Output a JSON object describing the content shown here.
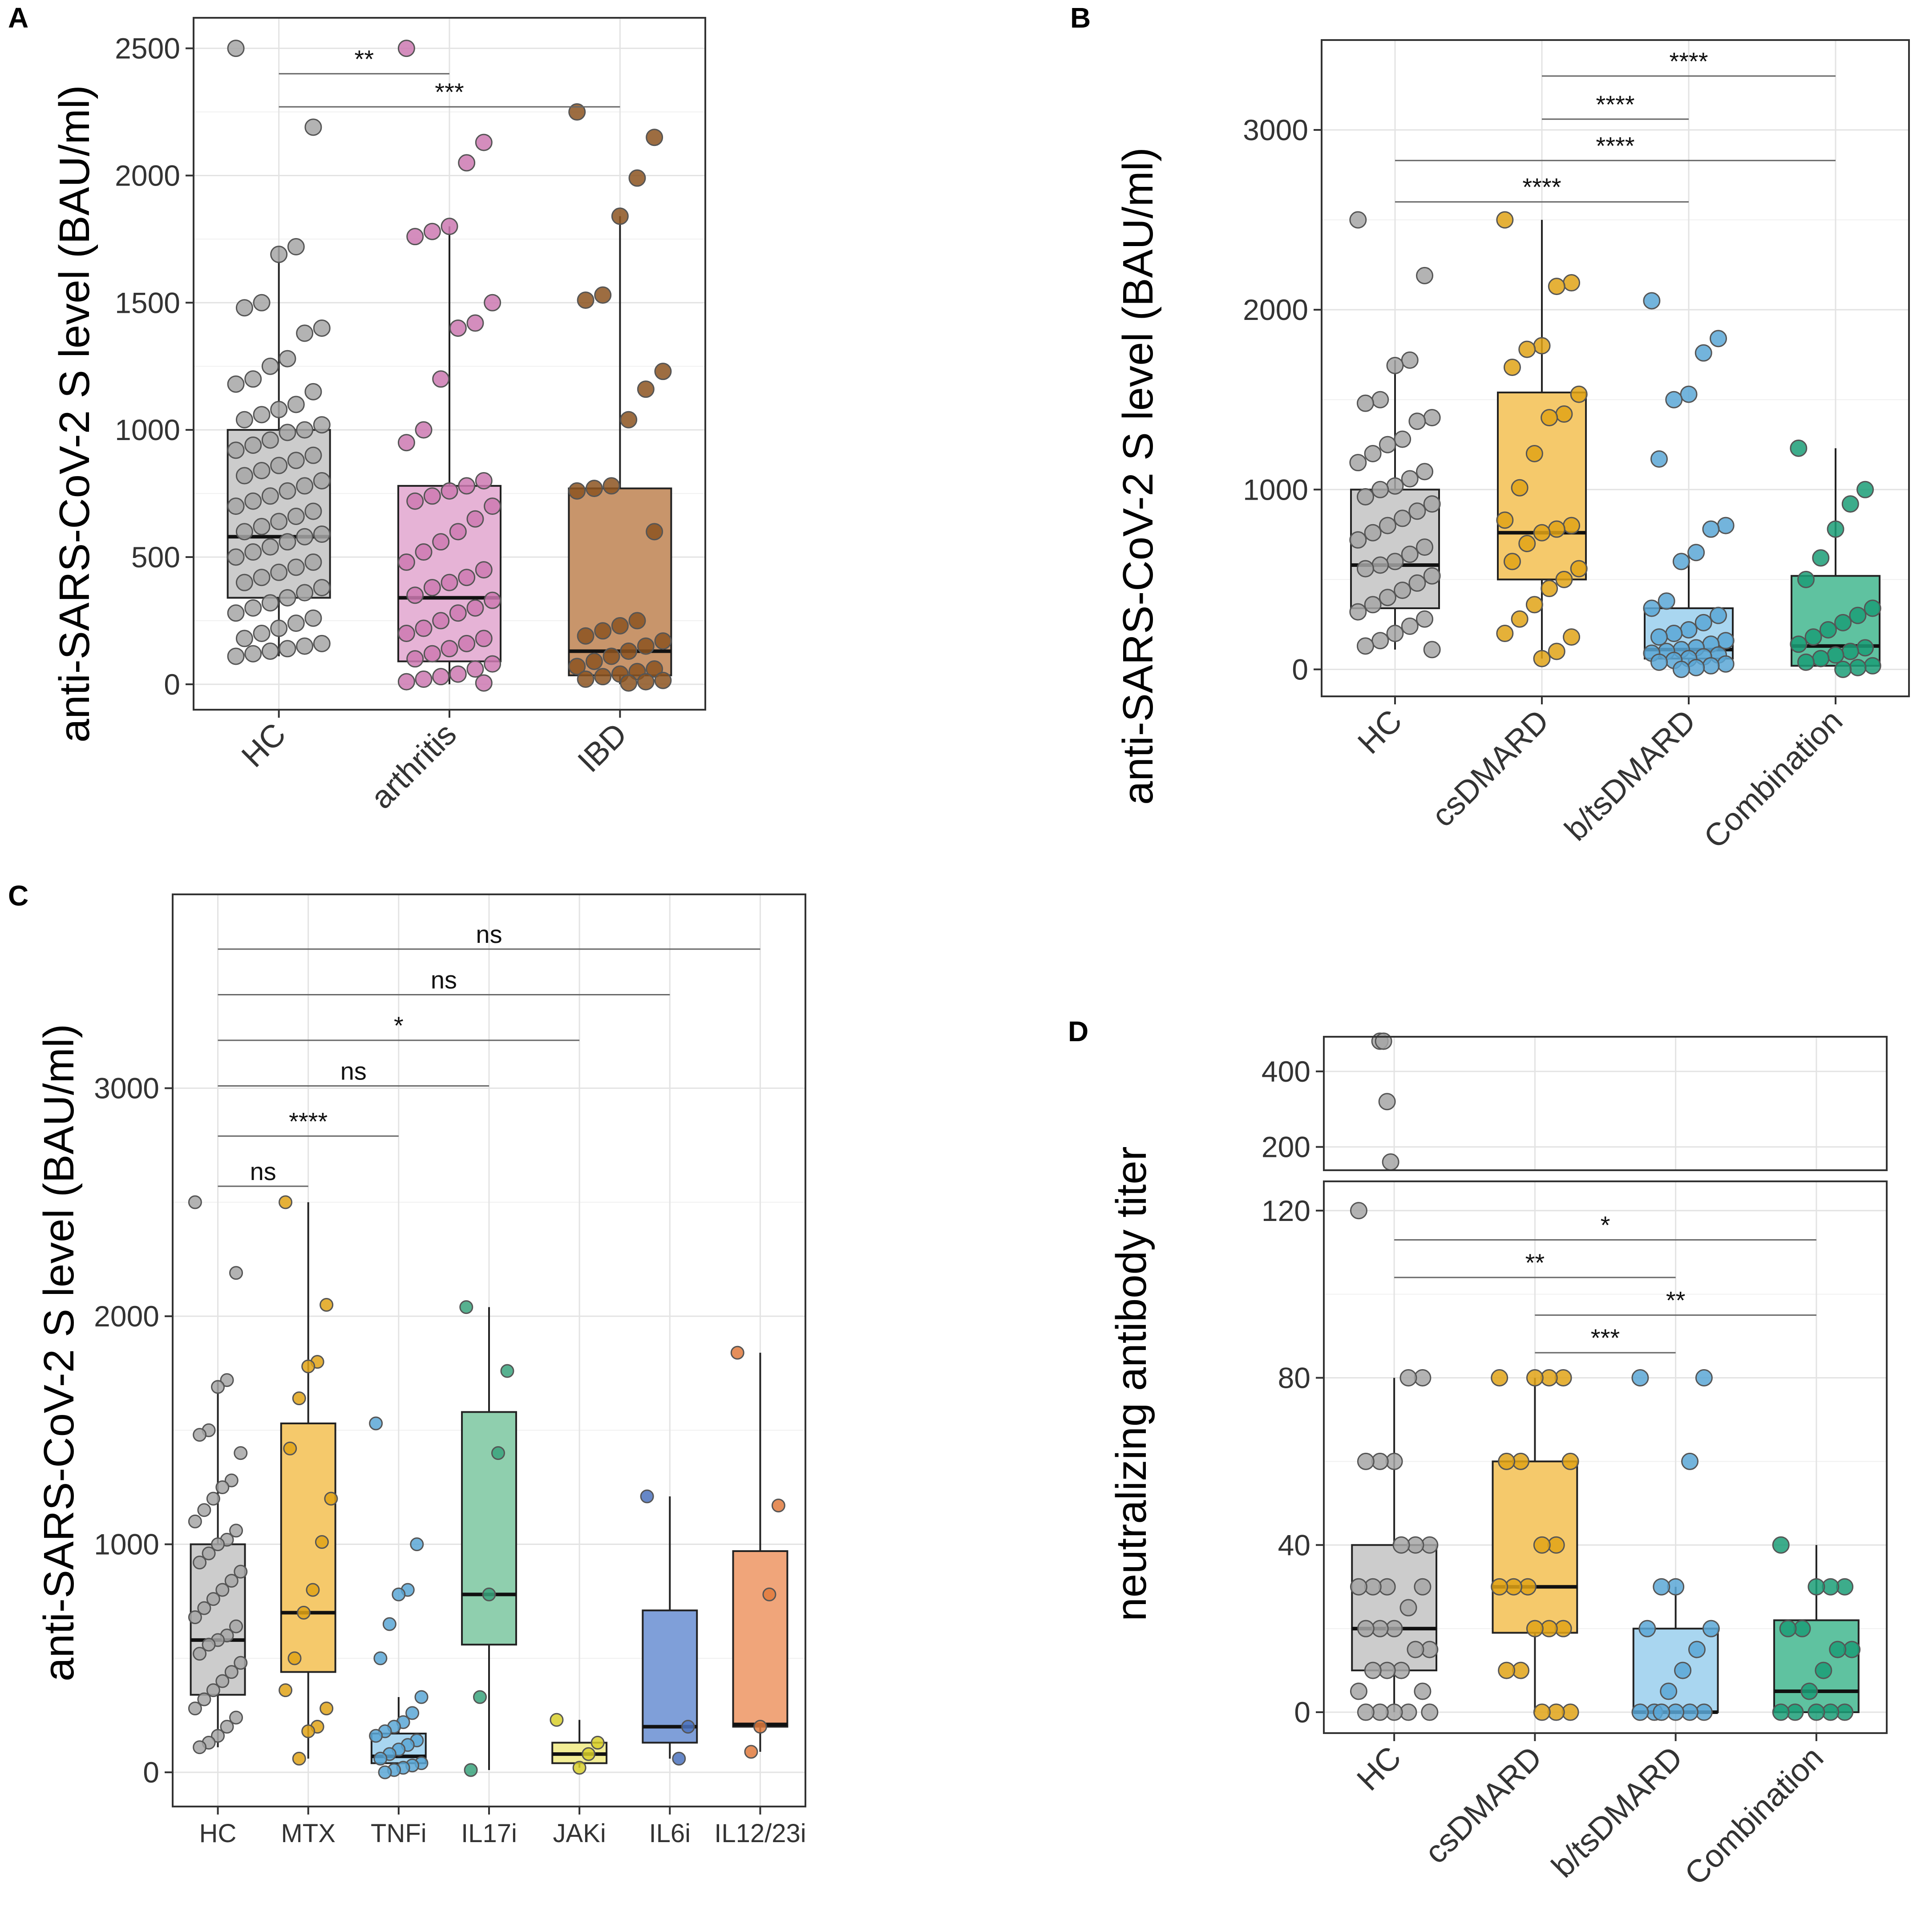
{
  "figure": {
    "panels": [
      "A",
      "B",
      "C",
      "D"
    ]
  },
  "chart_data": [
    {
      "id": "A",
      "panel_label": "A",
      "type": "box",
      "ylabel": "anti-SARS-CoV-2 S level (BAU/ml)",
      "ylim": [
        -100,
        2620
      ],
      "yticks": [
        0,
        500,
        1000,
        1500,
        2000,
        2500
      ],
      "categories": [
        "HC",
        "arthritis",
        "IBD"
      ],
      "colors": [
        "#cccccc",
        "#e6b3d6",
        "#c8956b"
      ],
      "point_colors": [
        "#a6a6a6",
        "#cc79b1",
        "#8c5420"
      ],
      "boxes": [
        {
          "q1": 340,
          "median": 580,
          "q3": 1000,
          "wlo": 110,
          "whi": 1720
        },
        {
          "q1": 90,
          "median": 340,
          "q3": 780,
          "wlo": 0,
          "whi": 1800
        },
        {
          "q1": 35,
          "median": 130,
          "q3": 770,
          "wlo": 0,
          "whi": 1840
        }
      ],
      "points": [
        [
          2500,
          2190,
          1720,
          1690,
          1500,
          1480,
          1400,
          1380,
          1280,
          1250,
          1200,
          1180,
          1150,
          1100,
          1080,
          1060,
          1040,
          1020,
          1000,
          990,
          960,
          940,
          920,
          900,
          880,
          860,
          840,
          820,
          800,
          780,
          760,
          740,
          720,
          700,
          680,
          660,
          640,
          620,
          600,
          590,
          580,
          560,
          540,
          520,
          500,
          480,
          460,
          440,
          420,
          400,
          380,
          360,
          340,
          320,
          300,
          280,
          260,
          240,
          220,
          200,
          180,
          160,
          150,
          140,
          130,
          120,
          110
        ],
        [
          2500,
          2130,
          2050,
          1800,
          1780,
          1760,
          1500,
          1420,
          1400,
          1200,
          1000,
          950,
          800,
          780,
          760,
          740,
          720,
          700,
          650,
          600,
          560,
          520,
          480,
          450,
          420,
          400,
          380,
          350,
          330,
          300,
          280,
          250,
          220,
          200,
          180,
          160,
          140,
          120,
          100,
          80,
          60,
          40,
          30,
          20,
          10,
          5
        ],
        [
          2250,
          2150,
          1990,
          1840,
          1530,
          1510,
          1230,
          1160,
          1040,
          780,
          770,
          760,
          600,
          250,
          230,
          210,
          190,
          170,
          150,
          130,
          110,
          90,
          70,
          60,
          50,
          40,
          30,
          20,
          15,
          10,
          5
        ]
      ],
      "comparisons": [
        {
          "from": 0,
          "to": 1,
          "y": 2400,
          "label": "**"
        },
        {
          "from": 0,
          "to": 2,
          "y": 2270,
          "label": "***"
        }
      ]
    },
    {
      "id": "B",
      "panel_label": "B",
      "type": "box",
      "ylabel": "anti-SARS-CoV-2 S level (BAU/ml)",
      "ylim": [
        -150,
        3500
      ],
      "yticks": [
        0,
        1000,
        2000,
        3000
      ],
      "categories": [
        "HC",
        "csDMARD",
        "b/tsDMARD",
        "Combination"
      ],
      "colors": [
        "#cccccc",
        "#f5c96b",
        "#a9d6f0",
        "#5fc2a0"
      ],
      "point_colors": [
        "#a6a6a6",
        "#e0a316",
        "#5aa7d6",
        "#1b9e77"
      ],
      "boxes": [
        {
          "q1": 340,
          "median": 580,
          "q3": 1000,
          "wlo": 110,
          "whi": 1720
        },
        {
          "q1": 500,
          "median": 760,
          "q3": 1540,
          "wlo": 60,
          "whi": 2500
        },
        {
          "q1": 60,
          "median": 110,
          "q3": 340,
          "wlo": 0,
          "whi": 640
        },
        {
          "q1": 20,
          "median": 130,
          "q3": 520,
          "wlo": 0,
          "whi": 1230
        }
      ],
      "points": [
        [
          2500,
          2190,
          1720,
          1690,
          1500,
          1480,
          1400,
          1380,
          1280,
          1250,
          1200,
          1150,
          1100,
          1060,
          1020,
          1000,
          960,
          920,
          880,
          840,
          800,
          760,
          720,
          680,
          640,
          600,
          580,
          560,
          520,
          480,
          440,
          400,
          360,
          320,
          280,
          240,
          200,
          160,
          130,
          110
        ],
        [
          2500,
          2150,
          2130,
          1800,
          1780,
          1680,
          1530,
          1420,
          1400,
          1200,
          1010,
          830,
          800,
          780,
          760,
          700,
          600,
          560,
          500,
          450,
          360,
          280,
          200,
          180,
          100,
          60
        ],
        [
          2050,
          1840,
          1760,
          1530,
          1500,
          1170,
          800,
          780,
          650,
          600,
          380,
          340,
          300,
          260,
          220,
          200,
          180,
          160,
          140,
          120,
          110,
          100,
          90,
          80,
          70,
          60,
          50,
          40,
          30,
          20,
          10,
          0
        ],
        [
          1230,
          1000,
          920,
          780,
          620,
          500,
          340,
          300,
          260,
          220,
          180,
          140,
          120,
          100,
          80,
          60,
          40,
          20,
          10,
          0
        ]
      ],
      "comparisons": [
        {
          "from": 1,
          "to": 3,
          "y": 3300,
          "label": "****"
        },
        {
          "from": 1,
          "to": 2,
          "y": 3060,
          "label": "****"
        },
        {
          "from": 0,
          "to": 3,
          "y": 2830,
          "label": "****"
        },
        {
          "from": 0,
          "to": 2,
          "y": 2600,
          "label": "****"
        }
      ]
    },
    {
      "id": "C",
      "panel_label": "C",
      "type": "box",
      "ylabel": "anti-SARS-CoV-2 S level (BAU/ml)",
      "ylim": [
        -150,
        3850
      ],
      "yticks": [
        0,
        1000,
        2000,
        3000
      ],
      "categories": [
        "HC",
        "MTX",
        "TNFi",
        "IL17i",
        "JAKi",
        "IL6i",
        "IL12/23i"
      ],
      "colors": [
        "#cccccc",
        "#f5c96b",
        "#a9d6f0",
        "#8fcfae",
        "#f3ee96",
        "#7f9fd9",
        "#f0a57a"
      ],
      "point_colors": [
        "#a6a6a6",
        "#e0a316",
        "#5aa7d6",
        "#3aa37c",
        "#d8cf2a",
        "#4b72bd",
        "#e07a3d"
      ],
      "boxes": [
        {
          "q1": 340,
          "median": 580,
          "q3": 1000,
          "wlo": 110,
          "whi": 1720
        },
        {
          "q1": 440,
          "median": 700,
          "q3": 1530,
          "wlo": 60,
          "whi": 2500
        },
        {
          "q1": 40,
          "median": 70,
          "q3": 170,
          "wlo": 0,
          "whi": 330
        },
        {
          "q1": 560,
          "median": 780,
          "q3": 1580,
          "wlo": 10,
          "whi": 2040
        },
        {
          "q1": 40,
          "median": 80,
          "q3": 130,
          "wlo": 20,
          "whi": 230
        },
        {
          "q1": 130,
          "median": 200,
          "q3": 710,
          "wlo": 60,
          "whi": 1210
        },
        {
          "q1": 200,
          "median": 210,
          "q3": 970,
          "wlo": 90,
          "whi": 1840
        }
      ],
      "points": [
        [
          2500,
          2190,
          1720,
          1690,
          1500,
          1480,
          1400,
          1280,
          1250,
          1200,
          1150,
          1100,
          1060,
          1020,
          1000,
          960,
          920,
          880,
          840,
          800,
          760,
          720,
          680,
          640,
          600,
          580,
          560,
          520,
          480,
          440,
          400,
          360,
          320,
          280,
          240,
          200,
          160,
          130,
          110
        ],
        [
          2500,
          2050,
          1800,
          1780,
          1640,
          1420,
          1200,
          1010,
          800,
          700,
          500,
          360,
          280,
          200,
          180,
          60
        ],
        [
          1530,
          1000,
          800,
          780,
          650,
          500,
          330,
          260,
          220,
          200,
          180,
          160,
          140,
          120,
          100,
          80,
          60,
          40,
          30,
          20,
          10,
          0
        ],
        [
          2040,
          1760,
          1400,
          780,
          330,
          10
        ],
        [
          230,
          130,
          80,
          20
        ],
        [
          1210,
          200,
          60
        ],
        [
          1840,
          1170,
          780,
          200,
          90
        ]
      ],
      "comparisons": [
        {
          "from": 0,
          "to": 6,
          "y": 3610,
          "label": "ns"
        },
        {
          "from": 0,
          "to": 5,
          "y": 3410,
          "label": "ns"
        },
        {
          "from": 0,
          "to": 4,
          "y": 3210,
          "label": "*"
        },
        {
          "from": 0,
          "to": 3,
          "y": 3010,
          "label": "ns"
        },
        {
          "from": 0,
          "to": 2,
          "y": 2790,
          "label": "****"
        },
        {
          "from": 0,
          "to": 1,
          "y": 2570,
          "label": "ns"
        }
      ]
    },
    {
      "id": "D",
      "panel_label": "D",
      "type": "box",
      "ylabel": "neutralizing antibody titer",
      "ylim": [
        -5,
        127
      ],
      "yticks": [
        0,
        40,
        80,
        120
      ],
      "top_ylim": [
        150,
        480
      ],
      "top_yticks": [
        200,
        400
      ],
      "categories": [
        "HC",
        "csDMARD",
        "b/tsDMARD",
        "Combination"
      ],
      "colors": [
        "#cccccc",
        "#f5c96b",
        "#a9d6f0",
        "#5fc2a0"
      ],
      "point_colors": [
        "#a6a6a6",
        "#e0a316",
        "#5aa7d6",
        "#1b9e77"
      ],
      "boxes": [
        {
          "q1": 10,
          "median": 20,
          "q3": 40,
          "wlo": 0,
          "whi": 80
        },
        {
          "q1": 19,
          "median": 30,
          "q3": 60,
          "wlo": 0,
          "whi": 80
        },
        {
          "q1": 0,
          "median": 0,
          "q3": 20,
          "wlo": 0,
          "whi": 30
        },
        {
          "q1": 0,
          "median": 5,
          "q3": 22,
          "wlo": 0,
          "whi": 40
        }
      ],
      "points": [
        [
          120,
          80,
          80,
          60,
          60,
          60,
          40,
          40,
          40,
          30,
          30,
          30,
          30,
          25,
          20,
          20,
          20,
          15,
          15,
          10,
          10,
          10,
          5,
          5,
          0,
          0,
          0,
          0,
          0
        ],
        [
          80,
          80,
          80,
          80,
          60,
          60,
          60,
          40,
          40,
          30,
          30,
          30,
          20,
          20,
          20,
          10,
          10,
          0,
          0,
          0
        ],
        [
          80,
          80,
          60,
          30,
          30,
          20,
          20,
          15,
          10,
          5,
          0,
          0,
          0,
          0,
          0,
          0
        ],
        [
          40,
          30,
          30,
          30,
          20,
          20,
          15,
          15,
          10,
          5,
          0,
          0,
          0,
          0,
          0
        ]
      ],
      "top_points": [
        [
          480,
          480,
          320,
          160
        ],
        [],
        [],
        []
      ],
      "comparisons": [
        {
          "from": 0,
          "to": 3,
          "y": 113,
          "label": "*"
        },
        {
          "from": 0,
          "to": 2,
          "y": 104,
          "label": "**"
        },
        {
          "from": 1,
          "to": 3,
          "y": 95,
          "label": "**"
        },
        {
          "from": 1,
          "to": 2,
          "y": 86,
          "label": "***"
        }
      ]
    }
  ]
}
